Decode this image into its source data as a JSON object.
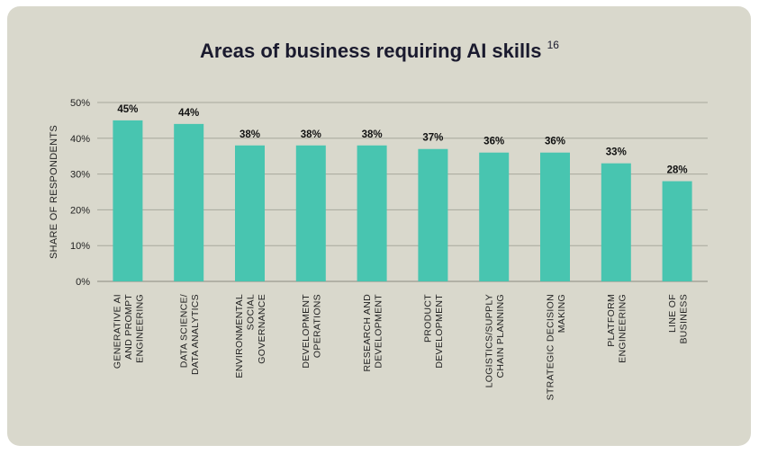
{
  "chart_data": {
    "type": "bar",
    "title": "Areas of business requiring AI skills",
    "title_footnote": "16",
    "ylabel": "SHARE OF RESPONDENTS",
    "xlabel": "",
    "ylim": [
      0,
      50
    ],
    "yticks": [
      "0%",
      "10%",
      "20%",
      "30%",
      "40%",
      "50%"
    ],
    "grid": true,
    "bar_color": "#48c5b0",
    "categories": [
      [
        "GENERATIVE AI",
        "AND PROMPT",
        "ENGINEERING"
      ],
      [
        "DATA SCIENCE/",
        "DATA ANALYTICS"
      ],
      [
        "ENVIRONMENTAL",
        "SOCIAL",
        "GOVERNANCE"
      ],
      [
        "DEVELOPMENT",
        "OPERATIONS"
      ],
      [
        "RESEARCH AND",
        "DEVELOPMENT"
      ],
      [
        "PRODUCT",
        "DEVELOPMENT"
      ],
      [
        "LOGISTICS/SUPPLY",
        "CHAIN PLANNING"
      ],
      [
        "STRATEGIC DECISION",
        "MAKING"
      ],
      [
        "PLATFORM",
        "ENGINEERING"
      ],
      [
        "LINE OF",
        "BUSINESS"
      ]
    ],
    "values": [
      45,
      44,
      38,
      38,
      38,
      37,
      36,
      36,
      33,
      28
    ],
    "value_labels": [
      "45%",
      "44%",
      "38%",
      "38%",
      "38%",
      "37%",
      "36%",
      "36%",
      "33%",
      "28%"
    ]
  }
}
